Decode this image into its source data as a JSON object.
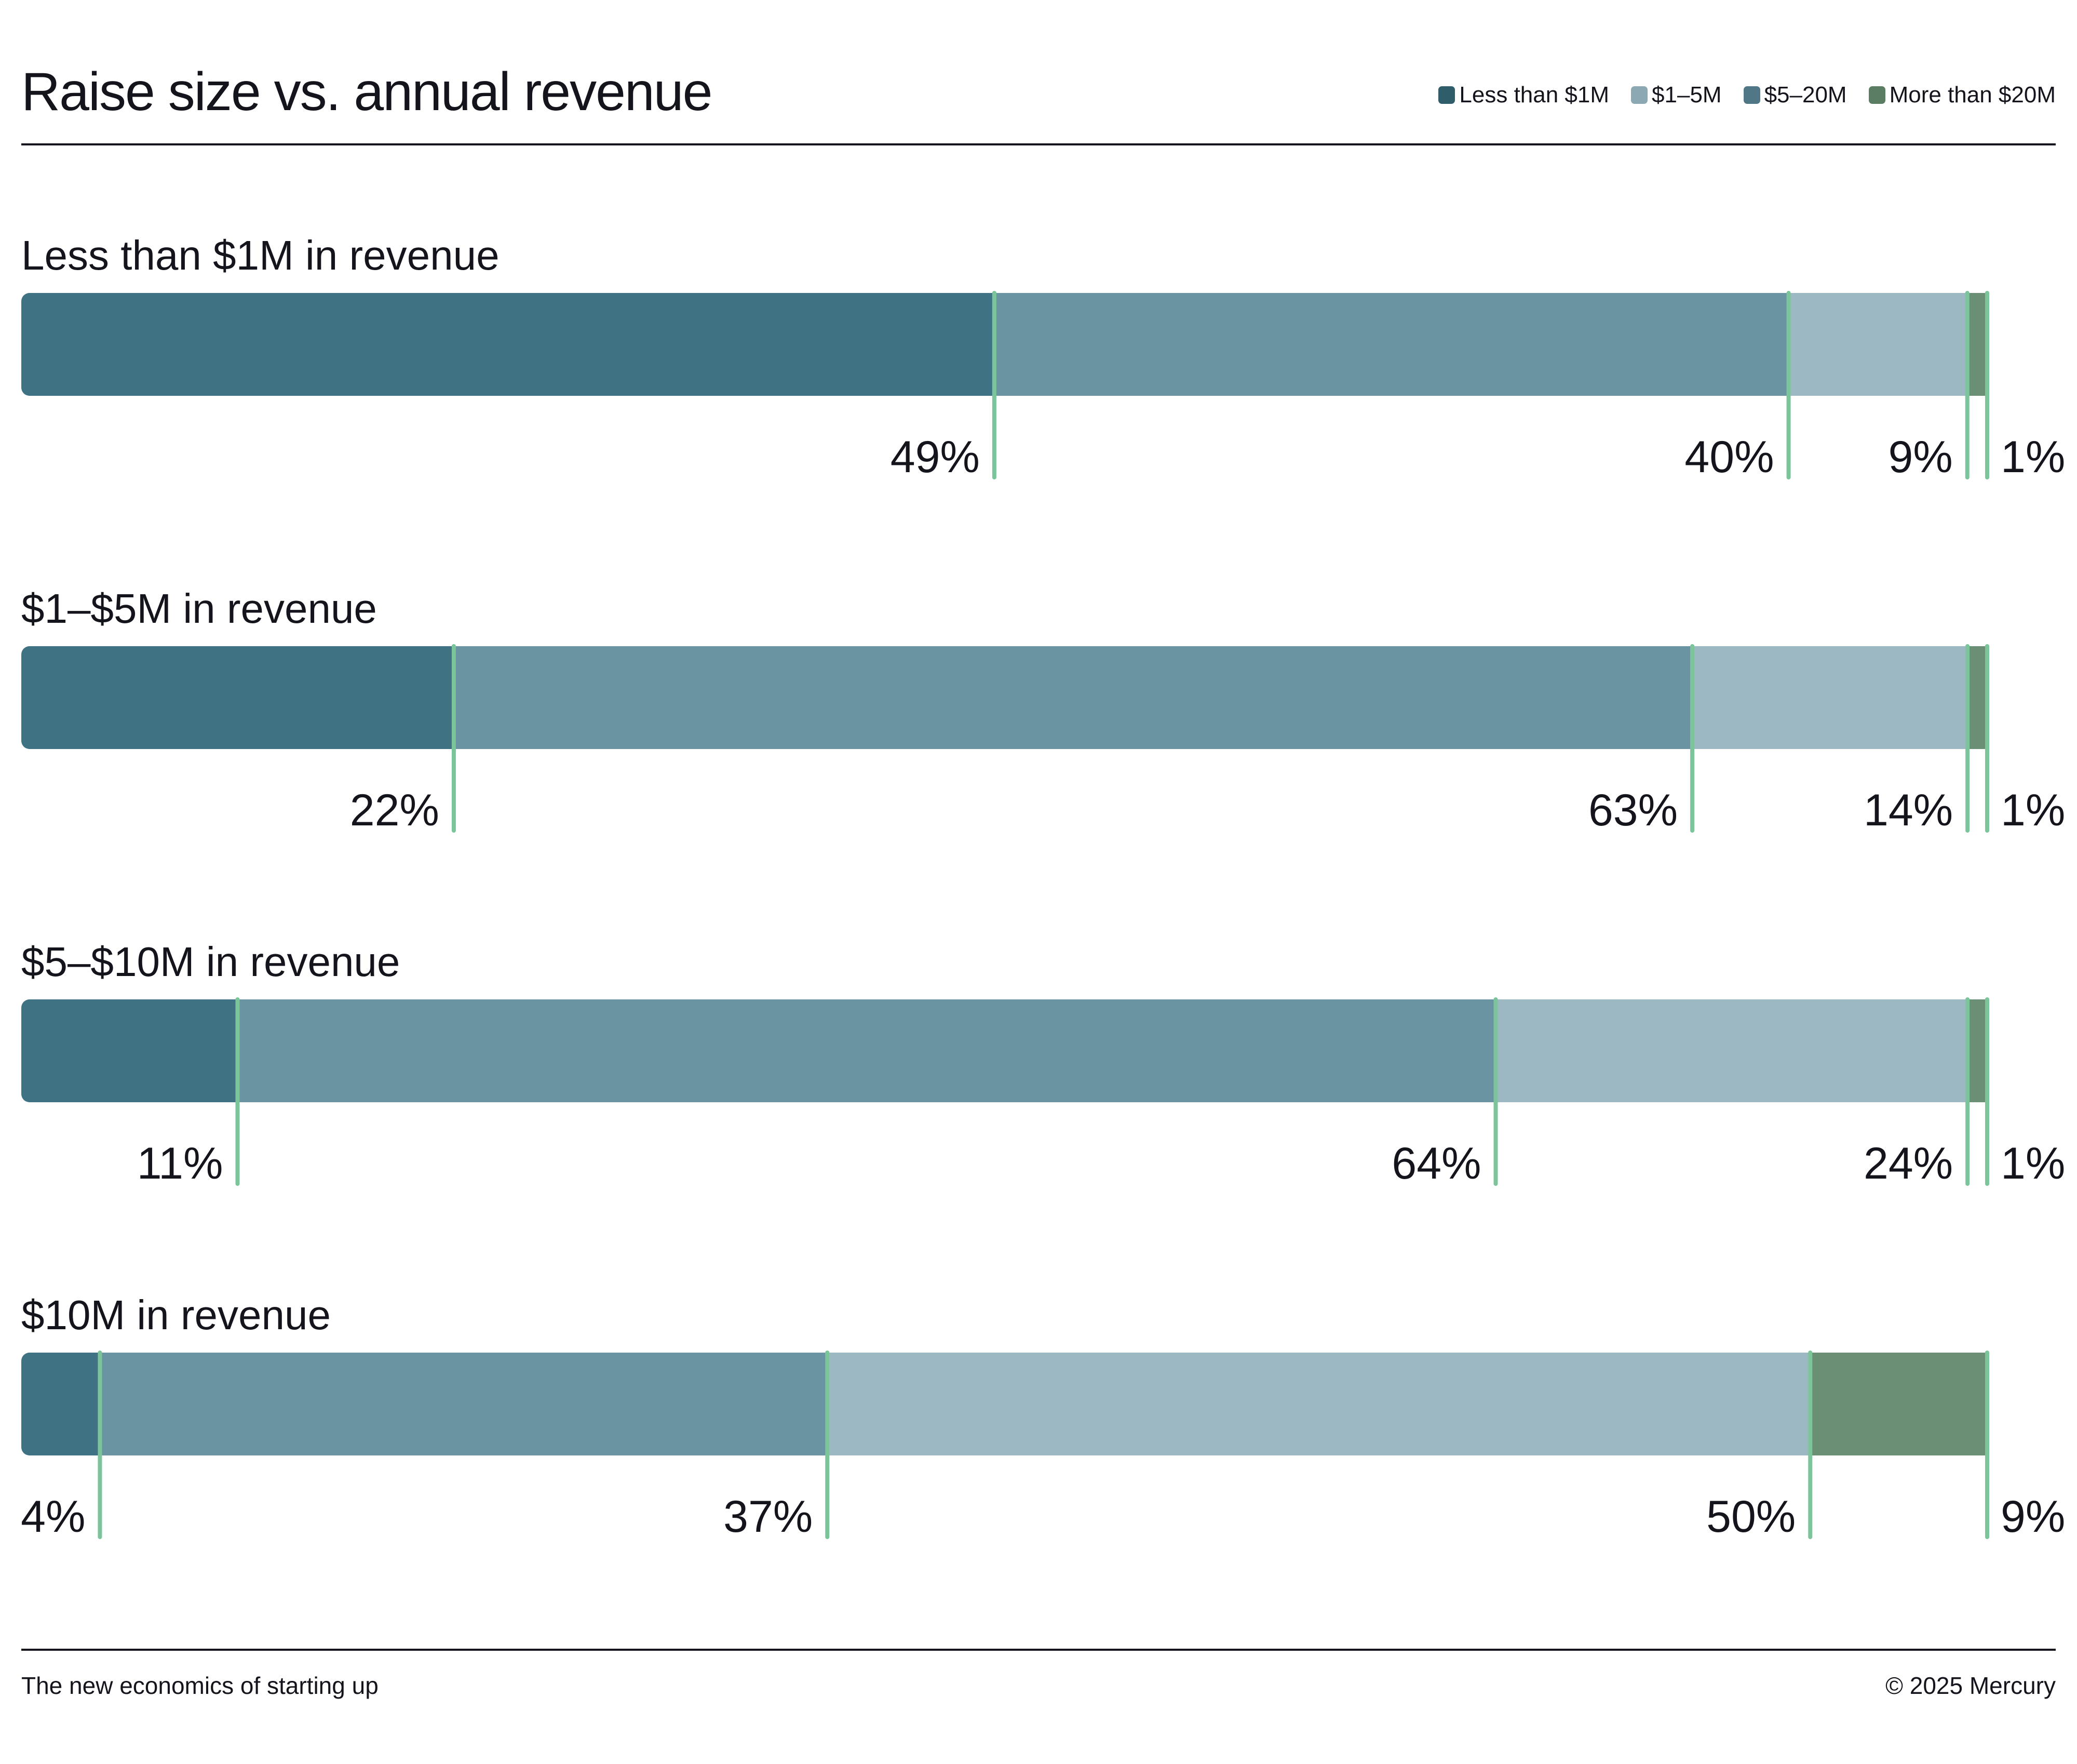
{
  "chart_data": {
    "type": "bar",
    "orientation": "horizontal-stacked-100",
    "title": "Raise size vs. annual revenue",
    "legend": {
      "placement": "top-right",
      "items": [
        {
          "name": "Less than $1M",
          "color": "#2f5d6a"
        },
        {
          "name": "$1–5M",
          "color": "#8ba8b3"
        },
        {
          "name": "$5–20M",
          "color": "#4f7786"
        },
        {
          "name": "More than $20M",
          "color": "#5b7d64"
        }
      ]
    },
    "segment_colors": [
      "#3f7283",
      "#6a94a2",
      "#9cb8c2",
      "#6a8f75"
    ],
    "marker_color": "#7cc59a",
    "categories": [
      "Less than $1M in revenue",
      "$1–$5M in revenue",
      "$5–$10M in revenue",
      "$10M in revenue"
    ],
    "rows": [
      {
        "label": "Less than $1M in revenue",
        "values": [
          49,
          40,
          9,
          1
        ],
        "labels": [
          "49%",
          "40%",
          "9%",
          "1%"
        ]
      },
      {
        "label": "$1–$5M in revenue",
        "values": [
          22,
          63,
          14,
          1
        ],
        "labels": [
          "22%",
          "63%",
          "14%",
          "1%"
        ]
      },
      {
        "label": "$5–$10M in revenue",
        "values": [
          11,
          64,
          24,
          1
        ],
        "labels": [
          "11%",
          "64%",
          "24%",
          "1%"
        ]
      },
      {
        "label": "$10M in revenue",
        "values": [
          4,
          37,
          50,
          9
        ],
        "labels": [
          "4%",
          "37%",
          "50%",
          "9%"
        ]
      }
    ]
  },
  "footer": {
    "left": "The new economics of starting up",
    "right": "© 2025 Mercury"
  }
}
